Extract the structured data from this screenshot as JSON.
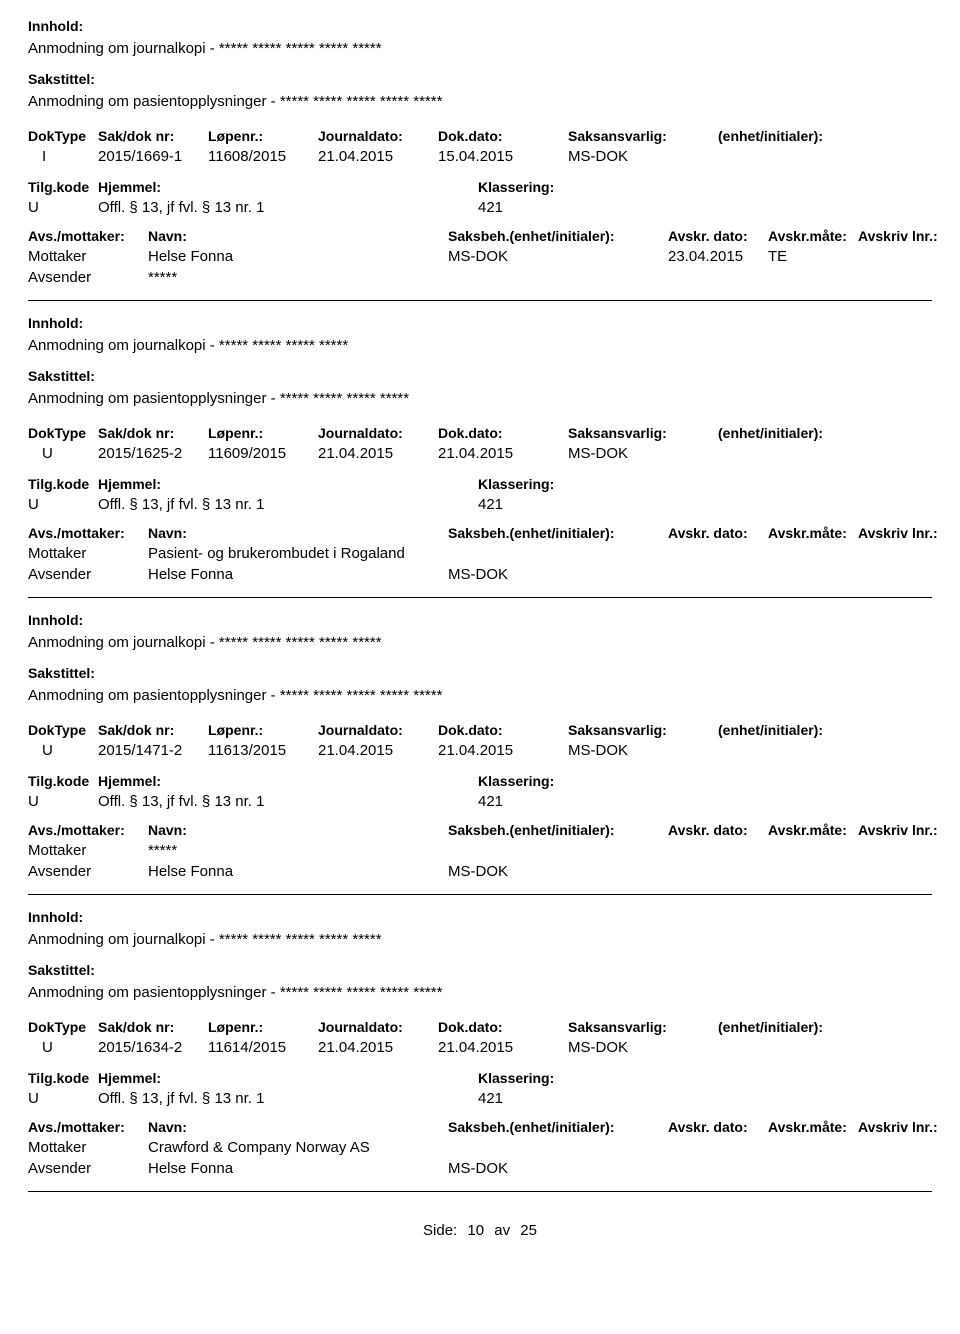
{
  "labels": {
    "innhold": "Innhold:",
    "sakstittel": "Sakstittel:",
    "doktype": "DokType",
    "sakdoknr": "Sak/dok nr:",
    "lopenr": "Løpenr.:",
    "journaldato": "Journaldato:",
    "dokdato": "Dok.dato:",
    "saksansvarlig": "Saksansvarlig:",
    "enhet": "(enhet/initialer):",
    "tilgkode": "Tilg.kode",
    "hjemmel": "Hjemmel:",
    "klassering": "Klassering:",
    "avsmottaker": "Avs./mottaker:",
    "navn": "Navn:",
    "saksbeh": "Saksbeh.(enhet/initialer):",
    "avskrdato": "Avskr. dato:",
    "avskrmate": "Avskr.måte:",
    "avskrivlnr": "Avskriv lnr.:",
    "mottaker": "Mottaker",
    "avsender": "Avsender"
  },
  "records": [
    {
      "innhold": "Anmodning om journalkopi -  ***** ***** ***** ***** *****",
      "sakstittel": "Anmodning om pasientopplysninger - ***** ***** ***** ***** *****",
      "doktype": "I",
      "sakdoknr": "2015/1669-1",
      "lopenr": "11608/2015",
      "journaldato": "21.04.2015",
      "dokdato": "15.04.2015",
      "saksansvarlig": "MS-DOK",
      "enhet": "",
      "tilgkode": "U",
      "hjemmel": "Offl. § 13, jf fvl. § 13 nr. 1",
      "klassering": "421",
      "parties": [
        {
          "role": "Mottaker",
          "navn": "Helse Fonna",
          "saksbeh": "MS-DOK",
          "avskrdato": "23.04.2015",
          "avskrmate": "TE",
          "avskrivlnr": ""
        },
        {
          "role": "Avsender",
          "navn": "*****",
          "saksbeh": "",
          "avskrdato": "",
          "avskrmate": "",
          "avskrivlnr": ""
        }
      ]
    },
    {
      "innhold": "Anmodning om journalkopi - ***** ***** ***** *****",
      "sakstittel": "Anmodning om pasientopplysninger - ***** ***** ***** *****",
      "doktype": "U",
      "sakdoknr": "2015/1625-2",
      "lopenr": "11609/2015",
      "journaldato": "21.04.2015",
      "dokdato": "21.04.2015",
      "saksansvarlig": "MS-DOK",
      "enhet": "",
      "tilgkode": "U",
      "hjemmel": "Offl. § 13, jf fvl. § 13 nr. 1",
      "klassering": "421",
      "parties": [
        {
          "role": "Mottaker",
          "navn": "Pasient- og brukerombudet i Rogaland",
          "saksbeh": "",
          "avskrdato": "",
          "avskrmate": "",
          "avskrivlnr": ""
        },
        {
          "role": "Avsender",
          "navn": "Helse Fonna",
          "saksbeh": "MS-DOK",
          "avskrdato": "",
          "avskrmate": "",
          "avskrivlnr": ""
        }
      ]
    },
    {
      "innhold": "Anmodning om journalkopi - ***** ***** ***** ***** *****",
      "sakstittel": "Anmodning om pasientopplysninger - ***** ***** ***** ***** *****",
      "doktype": "U",
      "sakdoknr": "2015/1471-2",
      "lopenr": "11613/2015",
      "journaldato": "21.04.2015",
      "dokdato": "21.04.2015",
      "saksansvarlig": "MS-DOK",
      "enhet": "",
      "tilgkode": "U",
      "hjemmel": "Offl. § 13, jf fvl. § 13 nr. 1",
      "klassering": "421",
      "parties": [
        {
          "role": "Mottaker",
          "navn": "*****",
          "saksbeh": "",
          "avskrdato": "",
          "avskrmate": "",
          "avskrivlnr": ""
        },
        {
          "role": "Avsender",
          "navn": "Helse Fonna",
          "saksbeh": "MS-DOK",
          "avskrdato": "",
          "avskrmate": "",
          "avskrivlnr": ""
        }
      ]
    },
    {
      "innhold": "Anmodning om journalkopi -  ***** ***** ***** ***** *****",
      "sakstittel": "Anmodning om pasientopplysninger - ***** ***** ***** ***** *****",
      "doktype": "U",
      "sakdoknr": "2015/1634-2",
      "lopenr": "11614/2015",
      "journaldato": "21.04.2015",
      "dokdato": "21.04.2015",
      "saksansvarlig": "MS-DOK",
      "enhet": "",
      "tilgkode": "U",
      "hjemmel": "Offl. § 13, jf fvl. § 13 nr. 1",
      "klassering": "421",
      "parties": [
        {
          "role": "Mottaker",
          "navn": "Crawford & Company Norway AS",
          "saksbeh": "",
          "avskrdato": "",
          "avskrmate": "",
          "avskrivlnr": ""
        },
        {
          "role": "Avsender",
          "navn": "Helse Fonna",
          "saksbeh": "MS-DOK",
          "avskrdato": "",
          "avskrmate": "",
          "avskrivlnr": ""
        }
      ]
    }
  ],
  "footer": {
    "label": "Side:",
    "current": "10",
    "sep": "av",
    "total": "25"
  }
}
